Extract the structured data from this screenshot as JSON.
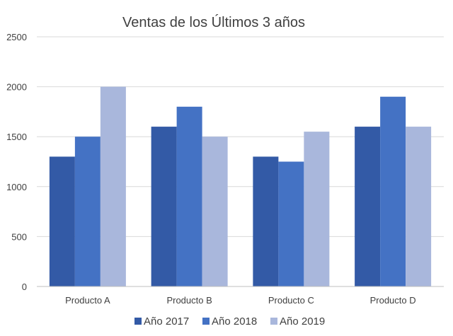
{
  "chart_data": {
    "type": "bar",
    "title": "Ventas de los Últimos 3 años",
    "xlabel": "",
    "ylabel": "",
    "categories": [
      "Producto A",
      "Producto B",
      "Producto C",
      "Producto D"
    ],
    "series": [
      {
        "name": "Año 2017",
        "values": [
          1300,
          1600,
          1300,
          1600
        ],
        "color": "#335aa6"
      },
      {
        "name": "Año 2018",
        "values": [
          1500,
          1800,
          1250,
          1900
        ],
        "color": "#4472c4"
      },
      {
        "name": "Año 2019",
        "values": [
          2000,
          1500,
          1550,
          1600
        ],
        "color": "#a9b7dc"
      }
    ],
    "ylim": [
      0,
      2500
    ],
    "yticks": [
      0,
      500,
      1000,
      1500,
      2000,
      2500
    ],
    "grid": true,
    "legend_position": "bottom"
  }
}
